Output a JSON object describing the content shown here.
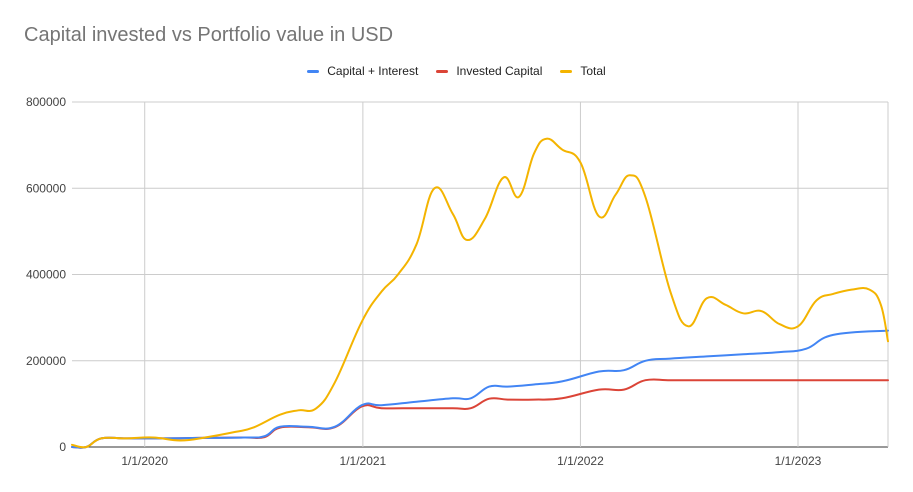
{
  "chart_data": {
    "type": "line",
    "title": "Capital invested vs Portfolio value in USD",
    "xlabel": "",
    "ylabel": "",
    "ylim": [
      0,
      800000
    ],
    "y_ticks": [
      "0",
      "200000",
      "400000",
      "600000",
      "800000"
    ],
    "y_tick_values": [
      0,
      200000,
      400000,
      600000,
      800000
    ],
    "x_ticks": [
      "1/1/2020",
      "1/1/2021",
      "1/1/2022",
      "1/1/2023"
    ],
    "x_tick_values": [
      "2020-01-01",
      "2021-01-01",
      "2022-01-01",
      "2023-01-01"
    ],
    "xlim": [
      "2019-09-01",
      "2023-06-01"
    ],
    "grid": true,
    "legend_position": "top",
    "series": [
      {
        "name": "Capital + Interest",
        "color": "#4285f4",
        "points": [
          [
            "2019-09-01",
            0
          ],
          [
            "2019-09-25",
            0
          ],
          [
            "2019-10-20",
            20000
          ],
          [
            "2019-12-01",
            20000
          ],
          [
            "2020-02-01",
            20000
          ],
          [
            "2020-04-01",
            21000
          ],
          [
            "2020-06-15",
            22000
          ],
          [
            "2020-07-20",
            25000
          ],
          [
            "2020-08-15",
            47000
          ],
          [
            "2020-10-01",
            47000
          ],
          [
            "2020-11-15",
            47000
          ],
          [
            "2020-12-30",
            97000
          ],
          [
            "2021-02-01",
            97000
          ],
          [
            "2021-04-01",
            105000
          ],
          [
            "2021-06-01",
            113000
          ],
          [
            "2021-07-01",
            113000
          ],
          [
            "2021-08-01",
            140000
          ],
          [
            "2021-09-01",
            140000
          ],
          [
            "2021-10-15",
            145000
          ],
          [
            "2021-12-01",
            152000
          ],
          [
            "2022-02-01",
            175000
          ],
          [
            "2022-03-15",
            178000
          ],
          [
            "2022-04-20",
            200000
          ],
          [
            "2022-06-01",
            205000
          ],
          [
            "2022-08-01",
            210000
          ],
          [
            "2022-10-01",
            215000
          ],
          [
            "2022-12-01",
            220000
          ],
          [
            "2023-01-15",
            228000
          ],
          [
            "2023-03-01",
            260000
          ],
          [
            "2023-06-01",
            270000
          ]
        ]
      },
      {
        "name": "Invested Capital",
        "color": "#db4437",
        "points": [
          [
            "2019-09-01",
            0
          ],
          [
            "2019-09-25",
            0
          ],
          [
            "2019-10-20",
            20000
          ],
          [
            "2019-12-01",
            20000
          ],
          [
            "2020-02-01",
            20000
          ],
          [
            "2020-04-01",
            21000
          ],
          [
            "2020-06-15",
            22000
          ],
          [
            "2020-07-20",
            23000
          ],
          [
            "2020-08-15",
            45000
          ],
          [
            "2020-10-01",
            46000
          ],
          [
            "2020-11-15",
            46000
          ],
          [
            "2020-12-30",
            94000
          ],
          [
            "2021-02-01",
            90000
          ],
          [
            "2021-04-01",
            90000
          ],
          [
            "2021-06-01",
            90000
          ],
          [
            "2021-07-01",
            90000
          ],
          [
            "2021-08-01",
            112000
          ],
          [
            "2021-09-01",
            110000
          ],
          [
            "2021-10-15",
            110000
          ],
          [
            "2021-12-01",
            113000
          ],
          [
            "2022-02-01",
            133000
          ],
          [
            "2022-03-15",
            133000
          ],
          [
            "2022-04-20",
            155000
          ],
          [
            "2022-06-01",
            155000
          ],
          [
            "2022-08-01",
            155000
          ],
          [
            "2022-10-01",
            155000
          ],
          [
            "2022-12-01",
            155000
          ],
          [
            "2023-01-15",
            155000
          ],
          [
            "2023-03-01",
            155000
          ],
          [
            "2023-06-01",
            155000
          ]
        ]
      },
      {
        "name": "Total",
        "color": "#f4b400",
        "points": [
          [
            "2019-09-01",
            5000
          ],
          [
            "2019-09-25",
            0
          ],
          [
            "2019-10-20",
            20000
          ],
          [
            "2019-12-01",
            20000
          ],
          [
            "2020-01-15",
            22000
          ],
          [
            "2020-03-01",
            15000
          ],
          [
            "2020-04-15",
            23000
          ],
          [
            "2020-06-01",
            35000
          ],
          [
            "2020-07-01",
            45000
          ],
          [
            "2020-08-15",
            75000
          ],
          [
            "2020-09-15",
            85000
          ],
          [
            "2020-10-15",
            90000
          ],
          [
            "2020-11-15",
            150000
          ],
          [
            "2020-12-30",
            290000
          ],
          [
            "2021-02-01",
            360000
          ],
          [
            "2021-03-01",
            400000
          ],
          [
            "2021-04-01",
            470000
          ],
          [
            "2021-05-01",
            600000
          ],
          [
            "2021-06-01",
            540000
          ],
          [
            "2021-06-25",
            480000
          ],
          [
            "2021-07-25",
            530000
          ],
          [
            "2021-08-25",
            625000
          ],
          [
            "2021-09-20",
            580000
          ],
          [
            "2021-10-15",
            680000
          ],
          [
            "2021-11-05",
            715000
          ],
          [
            "2021-12-01",
            690000
          ],
          [
            "2022-01-01",
            660000
          ],
          [
            "2022-02-01",
            535000
          ],
          [
            "2022-03-01",
            585000
          ],
          [
            "2022-03-25",
            630000
          ],
          [
            "2022-04-20",
            580000
          ],
          [
            "2022-06-01",
            360000
          ],
          [
            "2022-07-01",
            280000
          ],
          [
            "2022-08-01",
            345000
          ],
          [
            "2022-09-01",
            330000
          ],
          [
            "2022-10-01",
            310000
          ],
          [
            "2022-11-01",
            315000
          ],
          [
            "2022-12-01",
            285000
          ],
          [
            "2023-01-01",
            280000
          ],
          [
            "2023-02-01",
            340000
          ],
          [
            "2023-03-01",
            355000
          ],
          [
            "2023-04-01",
            365000
          ],
          [
            "2023-05-01",
            365000
          ],
          [
            "2023-05-20",
            330000
          ],
          [
            "2023-06-01",
            245000
          ]
        ]
      }
    ]
  }
}
